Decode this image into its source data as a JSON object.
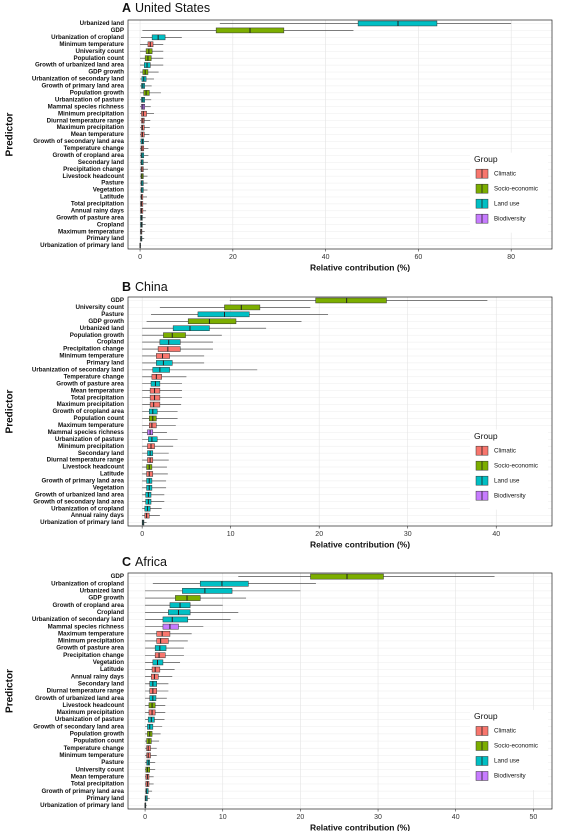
{
  "chart_data": [
    {
      "type": "boxplot",
      "panel": "A",
      "title": "United States",
      "xlabel": "Relative contribution (%)",
      "ylabel": "Predictor",
      "xlim": [
        -2.6,
        88.8
      ],
      "xticks": [
        0,
        20,
        40,
        60,
        80
      ],
      "legend_title": "Group",
      "legend": "right",
      "series": [
        {
          "name": "Climatic",
          "color": "#f8766d"
        },
        {
          "name": "Socio-economic",
          "color": "#7cae00"
        },
        {
          "name": "Land use",
          "color": "#00bfc4"
        },
        {
          "name": "Biodiversity",
          "color": "#c77cff"
        }
      ],
      "categories": [
        "Urbanized land",
        "GDP",
        "Urbanization of cropland",
        "Minimum temperature",
        "University count",
        "Population count",
        "Growth of urbanized land area",
        "GDP growth",
        "Urbanization of secondary land",
        "Growth of primary land area",
        "Population growth",
        "Urbanization of pasture",
        "Mammal species richness",
        "Minimum precipitation",
        "Diurnal temperature range",
        "Maximum precipitation",
        "Mean temperature",
        "Growth of secondary land area",
        "Temperature change",
        "Growth of cropland area",
        "Secondary land",
        "Precipitation change",
        "Livestock headcount",
        "Pasture",
        "Vegetation",
        "Latitude",
        "Total precipitation",
        "Annual rainy days",
        "Growth of pasture area",
        "Cropland",
        "Maximum temperature",
        "Primary land",
        "Urbanization of primary land"
      ],
      "group": [
        "Land use",
        "Socio-economic",
        "Land use",
        "Climatic",
        "Socio-economic",
        "Socio-economic",
        "Land use",
        "Socio-economic",
        "Land use",
        "Land use",
        "Socio-economic",
        "Land use",
        "Biodiversity",
        "Climatic",
        "Climatic",
        "Climatic",
        "Climatic",
        "Land use",
        "Climatic",
        "Land use",
        "Land use",
        "Climatic",
        "Socio-economic",
        "Land use",
        "Land use",
        "Climatic",
        "Climatic",
        "Climatic",
        "Land use",
        "Land use",
        "Climatic",
        "Land use",
        "Land use"
      ],
      "boxes": [
        [
          17.2,
          47,
          55.6,
          64,
          80
        ],
        [
          0.5,
          16.4,
          23.7,
          31,
          46
        ],
        [
          0.2,
          2.6,
          3.9,
          5.4,
          9
        ],
        [
          0,
          1.7,
          2.2,
          2.8,
          5
        ],
        [
          0,
          1.3,
          1.9,
          2.6,
          5
        ],
        [
          0,
          1.1,
          1.7,
          2.4,
          5
        ],
        [
          0,
          0.9,
          1.5,
          2.2,
          5
        ],
        [
          0,
          0.6,
          1.1,
          1.7,
          4
        ],
        [
          0,
          0.4,
          0.8,
          1.3,
          3
        ],
        [
          0,
          0.3,
          0.6,
          1,
          2.5
        ],
        [
          0,
          0.8,
          1.3,
          2,
          4.5
        ],
        [
          0,
          0.3,
          0.6,
          1,
          2.4
        ],
        [
          0,
          0.3,
          0.6,
          1,
          2.3
        ],
        [
          0,
          0.3,
          0.7,
          1.4,
          3
        ],
        [
          0,
          0.3,
          0.6,
          0.9,
          2.2
        ],
        [
          0,
          0.3,
          0.5,
          0.9,
          2.1
        ],
        [
          0,
          0.2,
          0.5,
          0.9,
          2
        ],
        [
          0,
          0.2,
          0.5,
          0.8,
          1.9
        ],
        [
          0,
          0.2,
          0.4,
          0.8,
          1.8
        ],
        [
          0,
          0.2,
          0.4,
          0.8,
          1.8
        ],
        [
          0,
          0.2,
          0.4,
          0.7,
          1.7
        ],
        [
          0,
          0.2,
          0.4,
          0.7,
          1.7
        ],
        [
          0,
          0.2,
          0.4,
          0.7,
          1.6
        ],
        [
          0,
          0.2,
          0.4,
          0.7,
          1.6
        ],
        [
          0,
          0.2,
          0.4,
          0.7,
          1.6
        ],
        [
          0,
          0.2,
          0.3,
          0.6,
          1.5
        ],
        [
          0,
          0.1,
          0.3,
          0.6,
          1.4
        ],
        [
          0,
          0.1,
          0.3,
          0.6,
          1.3
        ],
        [
          0,
          0.1,
          0.3,
          0.5,
          1.2
        ],
        [
          0,
          0.1,
          0.3,
          0.5,
          1.2
        ],
        [
          0,
          0.1,
          0.2,
          0.4,
          1
        ],
        [
          0,
          0.1,
          0.2,
          0.4,
          0.9
        ],
        [
          0,
          0,
          0,
          0.1,
          0.2
        ]
      ]
    },
    {
      "type": "boxplot",
      "panel": "B",
      "title": "China",
      "xlabel": "Relative contribution (%)",
      "ylabel": "Predictor",
      "xlim": [
        -1.6,
        46.3
      ],
      "xticks": [
        0,
        10,
        20,
        30,
        40
      ],
      "legend_title": "Group",
      "legend": "right",
      "series": [
        {
          "name": "Climatic",
          "color": "#f8766d"
        },
        {
          "name": "Socio-economic",
          "color": "#7cae00"
        },
        {
          "name": "Land use",
          "color": "#00bfc4"
        },
        {
          "name": "Biodiversity",
          "color": "#c77cff"
        }
      ],
      "categories": [
        "GDP",
        "University count",
        "Pasture",
        "GDP growth",
        "Urbanized land",
        "Population growth",
        "Cropland",
        "Precipitation change",
        "Minimum temperature",
        "Primary land",
        "Urbanization of secondary land",
        "Temperature change",
        "Growth of pasture area",
        "Mean temperature",
        "Total precipitation",
        "Maximum precipitation",
        "Growth of cropland area",
        "Population count",
        "Maximum temperature",
        "Mammal species richness",
        "Urbanization of pasture",
        "Minimum precipitation",
        "Secondary land",
        "Diurnal temperature range",
        "Livestock headcount",
        "Latitude",
        "Growth of primary land area",
        "Vegetation",
        "Growth of urbanized land area",
        "Growth of secondary land area",
        "Urbanization of cropland",
        "Annual rainy days",
        "Urbanization of primary land"
      ],
      "group": [
        "Socio-economic",
        "Socio-economic",
        "Land use",
        "Socio-economic",
        "Land use",
        "Socio-economic",
        "Land use",
        "Climatic",
        "Climatic",
        "Land use",
        "Land use",
        "Climatic",
        "Land use",
        "Climatic",
        "Climatic",
        "Climatic",
        "Land use",
        "Socio-economic",
        "Climatic",
        "Biodiversity",
        "Land use",
        "Climatic",
        "Land use",
        "Climatic",
        "Socio-economic",
        "Climatic",
        "Land use",
        "Land use",
        "Land use",
        "Land use",
        "Land use",
        "Climatic",
        "Land use"
      ],
      "boxes": [
        [
          9.9,
          19.6,
          23.1,
          27.6,
          39
        ],
        [
          2,
          9.3,
          11.2,
          13.3,
          19
        ],
        [
          1,
          6.3,
          9.3,
          12.1,
          21
        ],
        [
          0.5,
          5.2,
          7.6,
          10.6,
          18
        ],
        [
          0,
          3.5,
          5.4,
          7.6,
          14
        ],
        [
          0,
          2.4,
          3.4,
          4.9,
          9
        ],
        [
          0,
          2,
          3,
          4.3,
          8
        ],
        [
          0,
          1.8,
          2.9,
          4.3,
          8
        ],
        [
          0,
          1.6,
          2.3,
          3.1,
          7
        ],
        [
          0,
          1.6,
          2.4,
          3.4,
          7
        ],
        [
          0,
          1.2,
          2,
          3.1,
          13
        ],
        [
          0,
          1.1,
          1.6,
          2.2,
          5
        ],
        [
          0,
          1,
          1.5,
          2,
          4.5
        ],
        [
          0,
          0.9,
          1.4,
          2,
          4.5
        ],
        [
          0,
          0.9,
          1.4,
          2,
          4.5
        ],
        [
          0,
          0.9,
          1.3,
          2,
          4.4
        ],
        [
          0,
          0.8,
          1.2,
          1.7,
          4
        ],
        [
          0,
          0.8,
          1.2,
          1.6,
          4
        ],
        [
          0,
          0.8,
          1.1,
          1.6,
          3.8
        ],
        [
          0,
          0.6,
          0.9,
          1.2,
          2.8
        ],
        [
          0,
          0.7,
          1.1,
          1.7,
          4
        ],
        [
          0,
          0.6,
          1,
          1.4,
          3.5
        ],
        [
          0,
          0.6,
          0.9,
          1.2,
          3
        ],
        [
          0,
          0.6,
          0.9,
          1.2,
          3
        ],
        [
          0,
          0.5,
          0.8,
          1.1,
          2.8
        ],
        [
          0,
          0.5,
          0.8,
          1.2,
          2.9
        ],
        [
          0,
          0.5,
          0.8,
          1.1,
          2.7
        ],
        [
          0,
          0.5,
          0.8,
          1.1,
          2.7
        ],
        [
          0,
          0.4,
          0.7,
          1,
          2.5
        ],
        [
          0,
          0.4,
          0.7,
          1,
          2.5
        ],
        [
          0,
          0.3,
          0.6,
          0.9,
          2.2
        ],
        [
          0,
          0.3,
          0.5,
          0.8,
          2
        ],
        [
          0,
          0,
          0.1,
          0.2,
          0.5
        ]
      ]
    },
    {
      "type": "boxplot",
      "panel": "C",
      "title": "Africa",
      "xlabel": "Relative contribution (%)",
      "ylabel": "Predictor",
      "xlim": [
        -2.2,
        52.4
      ],
      "xticks": [
        0,
        10,
        20,
        30,
        40,
        50
      ],
      "legend_title": "Group",
      "legend": "right",
      "series": [
        {
          "name": "Climatic",
          "color": "#f8766d"
        },
        {
          "name": "Socio-economic",
          "color": "#7cae00"
        },
        {
          "name": "Land use",
          "color": "#00bfc4"
        },
        {
          "name": "Biodiversity",
          "color": "#c77cff"
        }
      ],
      "categories": [
        "GDP",
        "Urbanization of cropland",
        "Urbanized land",
        "GDP growth",
        "Growth of cropland area",
        "Cropland",
        "Urbanization of secondary land",
        "Mammal species richness",
        "Maximum temperature",
        "Minimum precipitation",
        "Growth of pasture area",
        "Precipitation change",
        "Vegetation",
        "Latitude",
        "Annual rainy days",
        "Secondary land",
        "Diurnal temperature range",
        "Growth of urbanized land area",
        "Livestock headcount",
        "Maximum precipitation",
        "Urbanization of pasture",
        "Growth of secondary land area",
        "Population growth",
        "Population count",
        "Temperature change",
        "Minimum temperature",
        "Pasture",
        "University count",
        "Mean temperature",
        "Total precipitation",
        "Growth of primary land area",
        "Primary land",
        "Urbanization of primary land"
      ],
      "group": [
        "Socio-economic",
        "Land use",
        "Land use",
        "Socio-economic",
        "Land use",
        "Land use",
        "Land use",
        "Biodiversity",
        "Climatic",
        "Climatic",
        "Land use",
        "Climatic",
        "Land use",
        "Climatic",
        "Climatic",
        "Land use",
        "Climatic",
        "Land use",
        "Socio-economic",
        "Climatic",
        "Land use",
        "Land use",
        "Socio-economic",
        "Socio-economic",
        "Climatic",
        "Climatic",
        "Land use",
        "Socio-economic",
        "Climatic",
        "Climatic",
        "Land use",
        "Land use",
        "Land use"
      ],
      "boxes": [
        [
          12,
          21.3,
          26,
          30.7,
          45
        ],
        [
          1,
          7.1,
          9.9,
          13.3,
          22
        ],
        [
          0,
          4.8,
          7.7,
          11.2,
          20
        ],
        [
          0,
          3.9,
          5.4,
          7.1,
          13
        ],
        [
          0,
          3.2,
          4.5,
          5.8,
          10
        ],
        [
          0,
          3,
          4.3,
          5.8,
          12
        ],
        [
          0,
          2.3,
          3.5,
          5.5,
          11
        ],
        [
          0,
          2.3,
          3.2,
          4.3,
          7.5
        ],
        [
          0,
          1.5,
          2.2,
          3.2,
          6
        ],
        [
          0,
          1.5,
          2,
          3,
          5.5
        ],
        [
          0,
          1.3,
          1.9,
          2.7,
          5
        ],
        [
          0,
          1.3,
          1.8,
          2.6,
          5
        ],
        [
          0,
          1,
          1.6,
          2.3,
          4.5
        ],
        [
          0,
          0.9,
          1.3,
          1.9,
          3.8
        ],
        [
          0,
          0.8,
          1.2,
          1.7,
          3.5
        ],
        [
          0,
          0.6,
          1,
          1.5,
          3
        ],
        [
          0,
          0.6,
          1,
          1.5,
          3
        ],
        [
          0,
          0.6,
          1,
          1.4,
          2.8
        ],
        [
          0,
          0.5,
          0.9,
          1.3,
          2.6
        ],
        [
          0,
          0.5,
          0.9,
          1.3,
          2.6
        ],
        [
          0,
          0.4,
          0.8,
          1.2,
          2.5
        ],
        [
          0,
          0.3,
          0.6,
          1,
          2.2
        ],
        [
          0,
          0.3,
          0.6,
          0.9,
          2
        ],
        [
          0,
          0.2,
          0.5,
          0.8,
          1.8
        ],
        [
          0,
          0.2,
          0.4,
          0.7,
          1.5
        ],
        [
          0,
          0.2,
          0.4,
          0.7,
          1.5
        ],
        [
          0,
          0.2,
          0.4,
          0.6,
          1.3
        ],
        [
          0,
          0.1,
          0.3,
          0.6,
          1.3
        ],
        [
          0,
          0.1,
          0.3,
          0.5,
          1.1
        ],
        [
          0,
          0.1,
          0.3,
          0.5,
          1.1
        ],
        [
          0,
          0.1,
          0.2,
          0.4,
          0.9
        ],
        [
          0,
          0,
          0.1,
          0.3,
          0.6
        ],
        [
          0,
          0,
          0,
          0.1,
          0.2
        ]
      ]
    }
  ]
}
